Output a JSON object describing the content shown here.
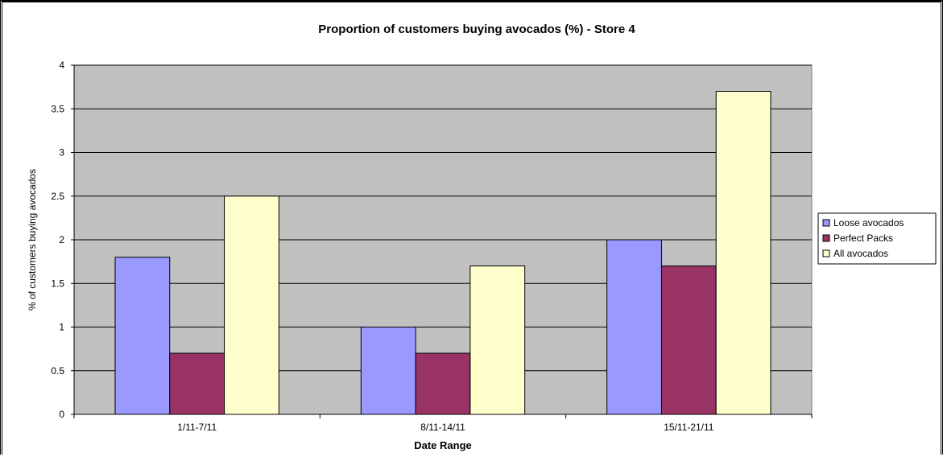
{
  "chart_data": {
    "type": "bar",
    "title": "Proportion of customers buying avocados (%) - Store 4",
    "xlabel": "Date Range",
    "ylabel": "% of customers buying avocados",
    "categories": [
      "1/11-7/11",
      "8/11-14/11",
      "15/11-21/11"
    ],
    "series": [
      {
        "name": "Loose avocados",
        "color": "#9999ff",
        "values": [
          1.8,
          1.0,
          2.0
        ]
      },
      {
        "name": "Perfect Packs",
        "color": "#993366",
        "values": [
          0.7,
          0.7,
          1.7
        ]
      },
      {
        "name": "All avocados",
        "color": "#ffffcc",
        "values": [
          2.5,
          1.7,
          3.7
        ]
      }
    ],
    "ylim": [
      0,
      4
    ],
    "yticks": [
      "0",
      "0.5",
      "1",
      "1.5",
      "2",
      "2.5",
      "3",
      "3.5",
      "4"
    ],
    "plot_background": "#c0c0c0",
    "grid": true,
    "legend_position": "right"
  }
}
